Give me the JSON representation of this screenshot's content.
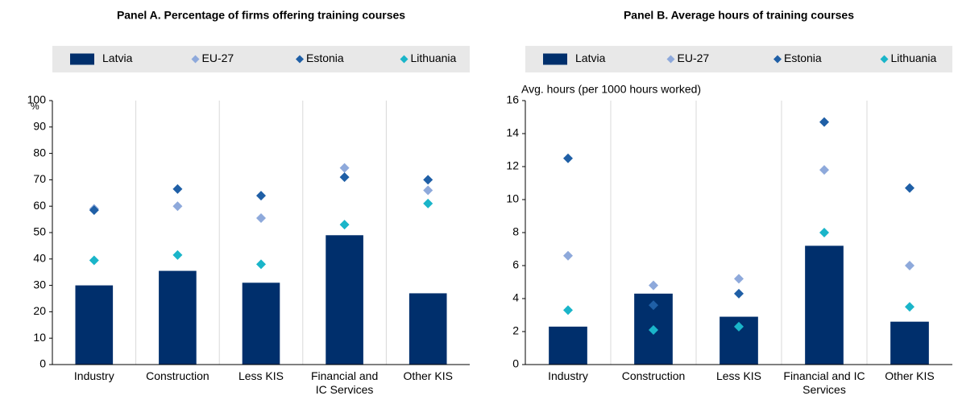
{
  "chart_data": [
    {
      "type": "bar",
      "title": "Panel A. Percentage of firms offering training courses",
      "y_label": "%",
      "categories": [
        "Industry",
        "Construction",
        "Less KIS",
        "Financial and IC Services",
        "Other KIS"
      ],
      "series": [
        {
          "name": "Latvia",
          "mark": "bar",
          "color": "#002f6c",
          "values": [
            30,
            35.5,
            31,
            49,
            27
          ]
        },
        {
          "name": "EU-27",
          "mark": "diamond",
          "color": "#8ea9db",
          "values": [
            59,
            60,
            55.5,
            74.5,
            66
          ]
        },
        {
          "name": "Estonia",
          "mark": "diamond",
          "color": "#1f5fa6",
          "values": [
            58.5,
            66.5,
            64,
            71,
            70
          ]
        },
        {
          "name": "Lithuania",
          "mark": "diamond",
          "color": "#1ab5c9",
          "values": [
            39.5,
            41.5,
            38,
            53,
            61
          ]
        }
      ],
      "ylim": [
        0,
        100
      ],
      "yticks": [
        0,
        10,
        20,
        30,
        40,
        50,
        60,
        70,
        80,
        90,
        100
      ]
    },
    {
      "type": "bar",
      "title": "Panel B. Average hours of training courses",
      "y_label": "Avg. hours (per 1000 hours worked)",
      "categories": [
        "Industry",
        "Construction",
        "Less KIS",
        "Financial and IC Services",
        "Other KIS"
      ],
      "series": [
        {
          "name": "Latvia",
          "mark": "bar",
          "color": "#002f6c",
          "values": [
            2.3,
            4.3,
            2.9,
            7.2,
            2.6
          ]
        },
        {
          "name": "EU-27",
          "mark": "diamond",
          "color": "#8ea9db",
          "values": [
            6.6,
            4.8,
            5.2,
            11.8,
            6.0
          ]
        },
        {
          "name": "Estonia",
          "mark": "diamond",
          "color": "#1f5fa6",
          "values": [
            12.5,
            3.6,
            4.3,
            14.7,
            10.7
          ]
        },
        {
          "name": "Lithuania",
          "mark": "diamond",
          "color": "#1ab5c9",
          "values": [
            3.3,
            2.1,
            2.3,
            8.0,
            3.5
          ]
        }
      ],
      "ylim": [
        0,
        16
      ],
      "yticks": [
        0,
        2,
        4,
        6,
        8,
        10,
        12,
        14,
        16
      ]
    }
  ]
}
